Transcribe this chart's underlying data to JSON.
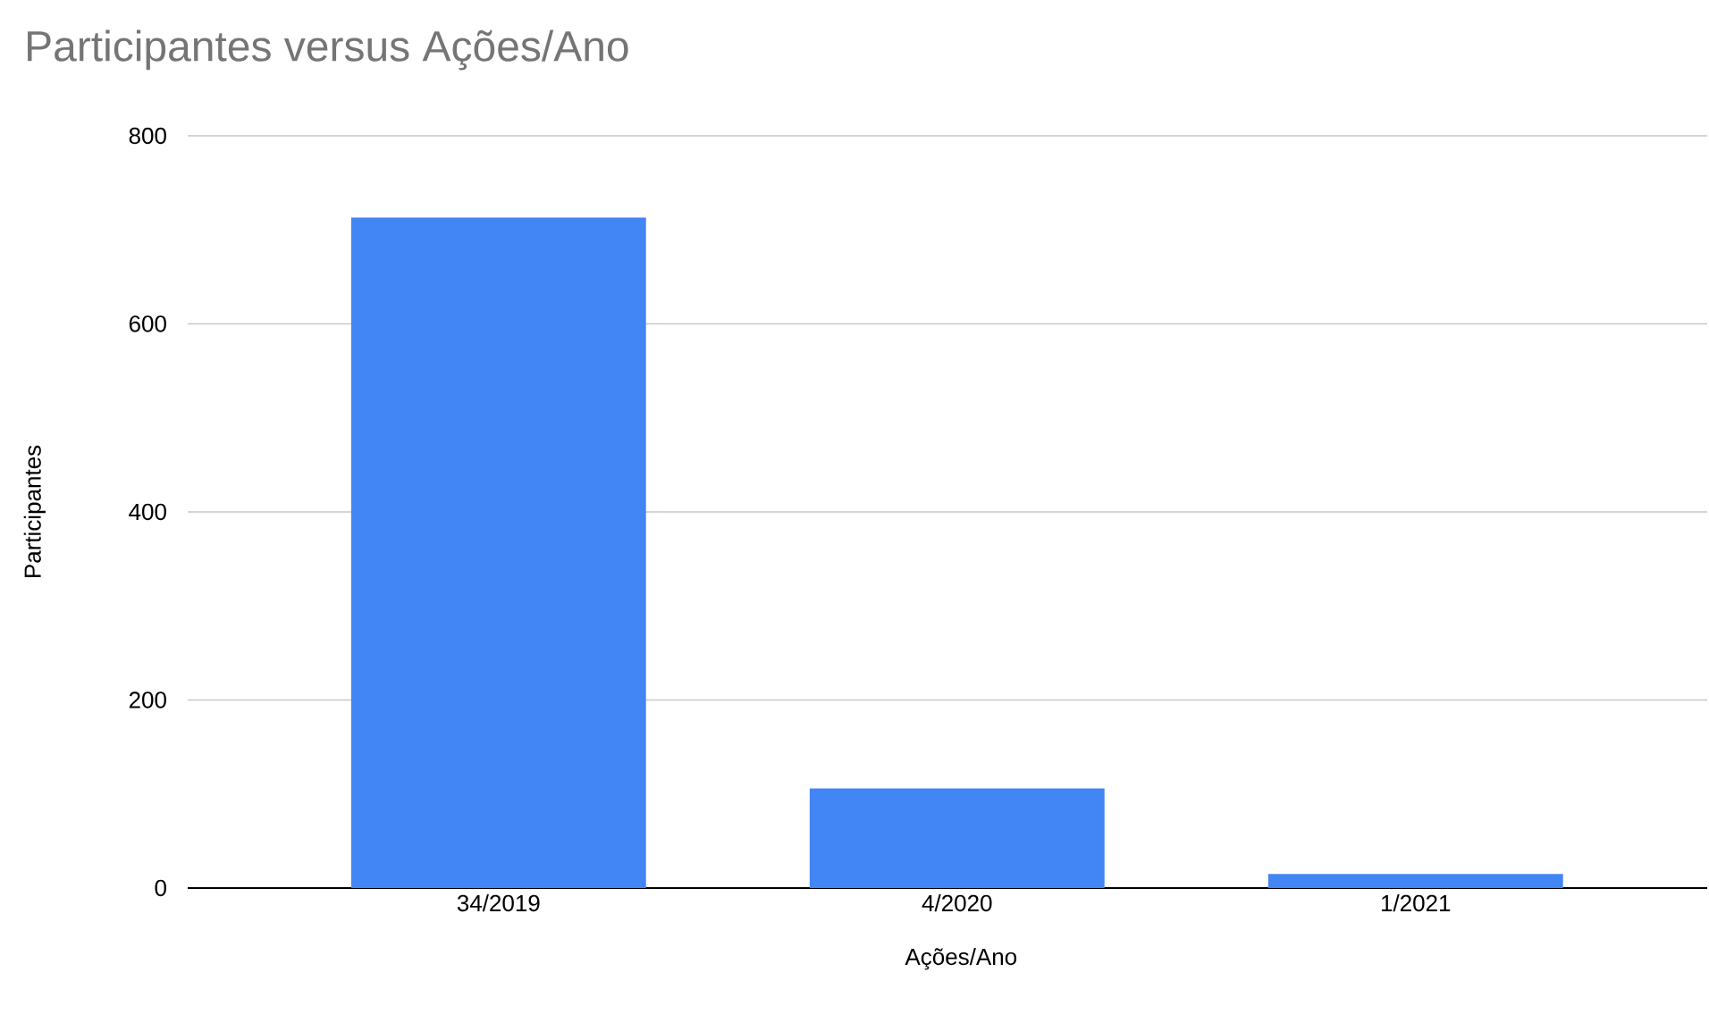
{
  "chart_data": {
    "type": "bar",
    "title": "Participantes versus Ações/Ano",
    "xlabel": "Ações/Ano",
    "ylabel": "Participantes",
    "categories": [
      "34/2019",
      "4/2020",
      "1/2021"
    ],
    "values": [
      713,
      106,
      15
    ],
    "color": "#4285f4",
    "ylim": [
      0,
      800
    ],
    "yticks": [
      0,
      200,
      400,
      600,
      800
    ],
    "grid": "y"
  }
}
